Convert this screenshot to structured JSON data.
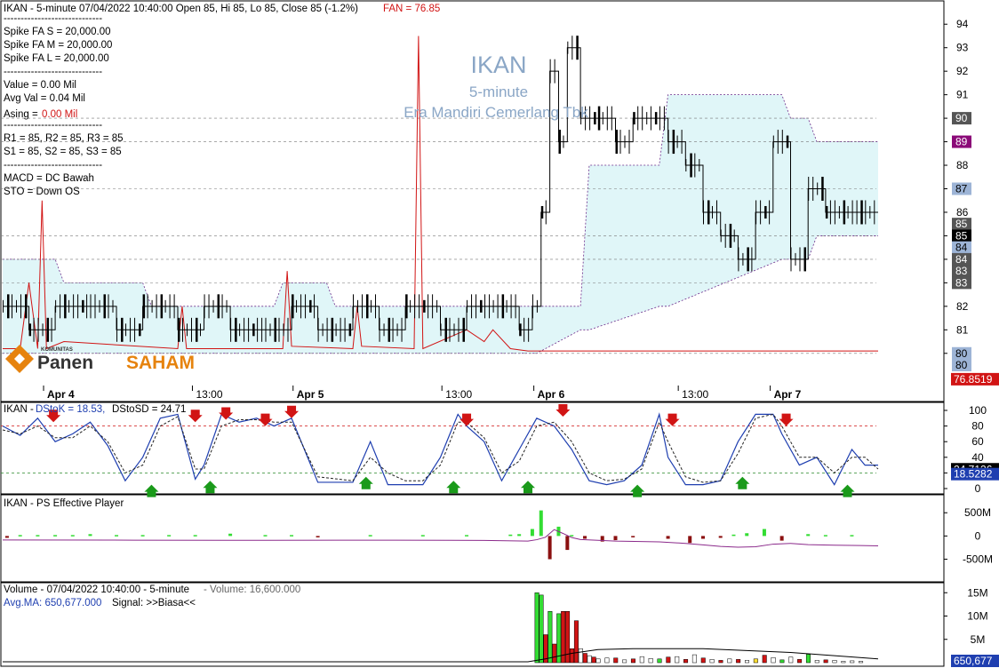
{
  "symbol": "IKAN",
  "price_panel": {
    "header": "IKAN - 5-minute 07/04/2022 10:40:00 Open 85, Hi 85, Lo 85, Close 85 (-1.2%)",
    "fan_label": "FAN = 76.85",
    "info_lines": [
      "-----------------------------",
      "Spike FA S =  20,000.00",
      "Spike FA M =  20,000.00",
      "Spike FA L =  20,000.00",
      "-----------------------------",
      "Value = 0.00 Mil",
      "Avg Val = 0.04 Mil",
      "-----------------------------",
      "R1 = 85, R2 = 85, R3 = 85",
      "S1 = 85, S2 = 85, S3 = 85",
      "-----------------------------",
      "MACD =  DC Bawah",
      "STO  =  Down OS"
    ],
    "asing_label": "Asing = ",
    "asing_value": "0.00 Mil",
    "watermark": {
      "title": "IKAN",
      "interval": "5-minute",
      "company": "Era Mandiri Cemerlang Tbk"
    },
    "logo": {
      "small": "KOMUNITAS",
      "word1": "Panen",
      "word2": "SAHAM"
    },
    "y_ticks": [
      "94",
      "93",
      "92",
      "91",
      "90",
      "89",
      "88",
      "87",
      "86",
      "85",
      "84",
      "83",
      "82",
      "81",
      "80"
    ],
    "badges": [
      {
        "label": "90",
        "bg": "#555555",
        "fg": "#ffffff",
        "value": 90
      },
      {
        "label": "89",
        "bg": "#8b0a78",
        "fg": "#ffffff",
        "value": 89
      },
      {
        "label": "87",
        "bg": "#9db4d6",
        "fg": "#000000",
        "value": 87
      },
      {
        "label": "85",
        "bg": "#555555",
        "fg": "#ffffff",
        "value": 85.5
      },
      {
        "label": "85",
        "bg": "#000000",
        "fg": "#ffffff",
        "value": 85
      },
      {
        "label": "84",
        "bg": "#9db4d6",
        "fg": "#000000",
        "value": 84.5
      },
      {
        "label": "84",
        "bg": "#555555",
        "fg": "#ffffff",
        "value": 84
      },
      {
        "label": "83",
        "bg": "#555555",
        "fg": "#ffffff",
        "value": 83.5
      },
      {
        "label": "83",
        "bg": "#555555",
        "fg": "#ffffff",
        "value": 83
      },
      {
        "label": "80",
        "bg": "#9db4d6",
        "fg": "#000000",
        "value": 80
      },
      {
        "label": "80",
        "bg": "#9db4d6",
        "fg": "#000000",
        "value": 79.5
      },
      {
        "label": "76.8519",
        "bg": "#d11414",
        "fg": "#ffffff",
        "value": 78.9
      }
    ],
    "x_labels": [
      {
        "label": "Apr 4",
        "bold": true,
        "x": 0.065
      },
      {
        "label": "13:00",
        "bold": false,
        "x": 0.235
      },
      {
        "label": "Apr 5",
        "bold": true,
        "x": 0.35
      },
      {
        "label": "13:00",
        "bold": false,
        "x": 0.52
      },
      {
        "label": "Apr 6",
        "bold": true,
        "x": 0.625
      },
      {
        "label": "13:00",
        "bold": false,
        "x": 0.79
      },
      {
        "label": "Apr 7",
        "bold": true,
        "x": 0.895
      }
    ]
  },
  "stoch_panel": {
    "header_prefix": "IKAN - ",
    "header_k": "DStoK = 18.53,",
    "header_d": " DStoSD = 24.71",
    "y_ticks": [
      "100",
      "80",
      "60",
      "40",
      "20",
      "0"
    ],
    "badges": [
      {
        "label": "24.7126",
        "bg": "#000000",
        "fg": "#ffffff",
        "value": 24.71
      },
      {
        "label": "18.5282",
        "bg": "#1f3fb0",
        "fg": "#ffffff",
        "value": 18.53
      }
    ],
    "levels": {
      "overbought": 80,
      "oversold": 20
    }
  },
  "ps_panel": {
    "header": "IKAN - PS Effective Player",
    "y_ticks": [
      "500M",
      "0",
      "-500M"
    ]
  },
  "volume_panel": {
    "header_prefix": "Volume - 07/04/2022 10:40:00 - 5-minute",
    "header_volume": "  - Volume: 16,600.000",
    "avg_label": "Avg.MA: 650,677.000",
    "signal_label": "Signal: >>Biasa<<",
    "y_ticks": [
      "15M",
      "10M",
      "5M"
    ],
    "badge": {
      "label": "650,677",
      "bg": "#1f3fb0",
      "fg": "#ffffff",
      "value": 650677
    }
  },
  "chart_data": [
    {
      "type": "bar",
      "title": "IKAN - 5-minute",
      "ylim": [
        79.5,
        94.5
      ],
      "price_x": [
        0.0,
        0.03,
        0.06,
        0.1,
        0.13,
        0.16,
        0.2,
        0.23,
        0.26,
        0.3,
        0.33,
        0.36,
        0.4,
        0.43,
        0.46,
        0.5,
        0.53,
        0.56,
        0.59,
        0.605,
        0.615,
        0.625,
        0.635,
        0.645,
        0.66,
        0.68,
        0.7,
        0.72,
        0.74,
        0.76,
        0.78,
        0.8,
        0.82,
        0.84,
        0.86,
        0.88,
        0.9,
        0.92,
        0.94,
        0.96,
        0.98,
        1.0
      ],
      "price_y": [
        82,
        81,
        82,
        82,
        81,
        82,
        81,
        82,
        81,
        81,
        82,
        81,
        82,
        81,
        82,
        81,
        82,
        82,
        81,
        82,
        86,
        92,
        89,
        93,
        90,
        90,
        89,
        90,
        90,
        89,
        88,
        86,
        85,
        84,
        86,
        89,
        84,
        87,
        86,
        86,
        86,
        86
      ],
      "band_x": [
        0.0,
        0.06,
        0.07,
        0.16,
        0.17,
        0.31,
        0.32,
        0.37,
        0.38,
        0.6,
        0.605,
        0.61,
        0.66,
        0.67,
        0.75,
        0.76,
        0.89,
        0.9,
        0.92,
        0.93,
        1.0
      ],
      "band_up": [
        84,
        84,
        83,
        83,
        82,
        82,
        83,
        83,
        82,
        82,
        82,
        82,
        82,
        88,
        88,
        91,
        91,
        90,
        90,
        89,
        89
      ],
      "band_lo": [
        80,
        80,
        80,
        80,
        80,
        80,
        80,
        80,
        80,
        80,
        80,
        80,
        81,
        81,
        82,
        82,
        84,
        84,
        84,
        85,
        85
      ],
      "fan_x": [
        0.0,
        0.02,
        0.03,
        0.04,
        0.045,
        0.05,
        0.07,
        0.2,
        0.205,
        0.21,
        0.32,
        0.325,
        0.33,
        0.4,
        0.405,
        0.41,
        0.47,
        0.475,
        0.48,
        0.53,
        0.55,
        0.56,
        0.58,
        0.6,
        1.0
      ],
      "fan_y": [
        80.2,
        80.2,
        83,
        80.2,
        86.5,
        80.2,
        80.5,
        80.2,
        82,
        80.2,
        80.2,
        83.5,
        80.3,
        80.2,
        82,
        80.3,
        80.2,
        93.5,
        80.2,
        81,
        80.5,
        81,
        80.2,
        80.1,
        80.1
      ]
    },
    {
      "type": "line",
      "title": "IKAN - DStoK / DStoSD",
      "ylim": [
        0,
        100
      ],
      "series": [
        {
          "name": "DStoK",
          "x": [
            0.0,
            0.02,
            0.04,
            0.06,
            0.08,
            0.1,
            0.12,
            0.14,
            0.16,
            0.18,
            0.2,
            0.22,
            0.23,
            0.25,
            0.27,
            0.29,
            0.31,
            0.33,
            0.36,
            0.4,
            0.42,
            0.44,
            0.46,
            0.48,
            0.5,
            0.52,
            0.53,
            0.55,
            0.57,
            0.59,
            0.61,
            0.63,
            0.65,
            0.67,
            0.69,
            0.71,
            0.73,
            0.75,
            0.76,
            0.78,
            0.8,
            0.82,
            0.84,
            0.86,
            0.88,
            0.89,
            0.91,
            0.93,
            0.95,
            0.97,
            0.985,
            1.0
          ],
          "y": [
            80,
            68,
            90,
            60,
            70,
            85,
            55,
            10,
            40,
            90,
            95,
            12,
            30,
            95,
            85,
            90,
            80,
            90,
            8,
            8,
            60,
            5,
            5,
            5,
            40,
            95,
            80,
            60,
            10,
            50,
            90,
            80,
            50,
            10,
            5,
            10,
            30,
            95,
            40,
            5,
            5,
            10,
            60,
            95,
            95,
            70,
            30,
            40,
            5,
            50,
            30,
            30
          ]
        },
        {
          "name": "DStoSD",
          "x": [
            0.0,
            0.02,
            0.04,
            0.06,
            0.08,
            0.1,
            0.12,
            0.14,
            0.16,
            0.18,
            0.2,
            0.22,
            0.23,
            0.25,
            0.27,
            0.29,
            0.31,
            0.33,
            0.36,
            0.4,
            0.42,
            0.44,
            0.46,
            0.48,
            0.5,
            0.52,
            0.53,
            0.55,
            0.57,
            0.59,
            0.61,
            0.63,
            0.65,
            0.67,
            0.69,
            0.71,
            0.73,
            0.75,
            0.76,
            0.78,
            0.8,
            0.82,
            0.84,
            0.86,
            0.88,
            0.89,
            0.91,
            0.93,
            0.95,
            0.97,
            0.985,
            1.0
          ],
          "y": [
            75,
            70,
            80,
            65,
            65,
            80,
            60,
            20,
            30,
            80,
            92,
            25,
            25,
            80,
            88,
            88,
            85,
            85,
            15,
            10,
            40,
            20,
            10,
            10,
            30,
            85,
            85,
            65,
            20,
            35,
            80,
            85,
            60,
            20,
            10,
            12,
            25,
            85,
            60,
            15,
            8,
            10,
            45,
            90,
            95,
            80,
            40,
            40,
            20,
            40,
            40,
            25
          ]
        }
      ],
      "markers": [
        {
          "kind": "sell",
          "x": 0.058,
          "y": 85
        },
        {
          "kind": "sell",
          "x": 0.22,
          "y": 85
        },
        {
          "kind": "sell",
          "x": 0.255,
          "y": 88
        },
        {
          "kind": "sell",
          "x": 0.3,
          "y": 80
        },
        {
          "kind": "sell",
          "x": 0.33,
          "y": 90
        },
        {
          "kind": "sell",
          "x": 0.53,
          "y": 80
        },
        {
          "kind": "sell",
          "x": 0.64,
          "y": 92
        },
        {
          "kind": "sell",
          "x": 0.765,
          "y": 80
        },
        {
          "kind": "sell",
          "x": 0.895,
          "y": 80
        },
        {
          "kind": "buy",
          "x": 0.17,
          "y": 5
        },
        {
          "kind": "buy",
          "x": 0.237,
          "y": 10
        },
        {
          "kind": "buy",
          "x": 0.415,
          "y": 15
        },
        {
          "kind": "buy",
          "x": 0.515,
          "y": 10
        },
        {
          "kind": "buy",
          "x": 0.6,
          "y": 10
        },
        {
          "kind": "buy",
          "x": 0.725,
          "y": 5
        },
        {
          "kind": "buy",
          "x": 0.845,
          "y": 15
        },
        {
          "kind": "buy",
          "x": 0.965,
          "y": 5
        }
      ]
    },
    {
      "type": "bar",
      "title": "IKAN - PS Effective Player",
      "ylim": [
        -700,
        600
      ],
      "bars_x": [
        0.005,
        0.02,
        0.04,
        0.06,
        0.08,
        0.1,
        0.13,
        0.16,
        0.19,
        0.22,
        0.26,
        0.3,
        0.33,
        0.36,
        0.42,
        0.48,
        0.53,
        0.58,
        0.59,
        0.605,
        0.615,
        0.625,
        0.635,
        0.645,
        0.65,
        0.665,
        0.685,
        0.7,
        0.72,
        0.76,
        0.785,
        0.8,
        0.82,
        0.835,
        0.85,
        0.87,
        0.89,
        0.92,
        0.94,
        0.97
      ],
      "bars_y": [
        -40,
        20,
        20,
        20,
        20,
        40,
        20,
        20,
        20,
        20,
        50,
        20,
        20,
        -30,
        20,
        20,
        20,
        30,
        40,
        150,
        550,
        -500,
        200,
        -300,
        20,
        -60,
        -120,
        -90,
        -30,
        -60,
        -150,
        -60,
        -40,
        30,
        60,
        150,
        -100,
        40,
        20,
        20
      ],
      "line_x": [
        0.0,
        0.15,
        0.3,
        0.45,
        0.55,
        0.6,
        0.61,
        0.62,
        0.63,
        0.64,
        0.65,
        0.66,
        0.7,
        0.75,
        0.78,
        0.8,
        0.82,
        0.84,
        0.86,
        0.88,
        0.9,
        0.92,
        0.95,
        0.98,
        1.0
      ],
      "line_y": [
        -80,
        -90,
        -100,
        -90,
        -110,
        -150,
        -60,
        100,
        600,
        350,
        80,
        -50,
        -150,
        -200,
        -300,
        -400,
        -500,
        -550,
        -520,
        -350,
        -300,
        -380,
        -420,
        -440,
        -460
      ]
    },
    {
      "type": "bar",
      "title": "Volume - 5-minute",
      "ylim": [
        0,
        16000000
      ],
      "bars_x": [
        0.61,
        0.615,
        0.62,
        0.625,
        0.63,
        0.635,
        0.64,
        0.645,
        0.65,
        0.655,
        0.66,
        0.665,
        0.67,
        0.675,
        0.68,
        0.69,
        0.7,
        0.71,
        0.72,
        0.73,
        0.74,
        0.75,
        0.76,
        0.77,
        0.78,
        0.79,
        0.8,
        0.81,
        0.82,
        0.83,
        0.84,
        0.85,
        0.86,
        0.87,
        0.88,
        0.89,
        0.9,
        0.91,
        0.92,
        0.93,
        0.94,
        0.95,
        0.96,
        0.97,
        0.98
      ],
      "bars_y": [
        15000000,
        14500000,
        6000000,
        11000000,
        4000000,
        10500000,
        11000000,
        11000000,
        3000000,
        9000000,
        3000000,
        2000000,
        1500000,
        1200000,
        800000,
        1000000,
        1000000,
        600000,
        800000,
        1300000,
        900000,
        800000,
        1200000,
        1300000,
        700000,
        1700000,
        1000000,
        700000,
        500000,
        800000,
        700000,
        500000,
        800000,
        1600000,
        1100000,
        600000,
        1200000,
        700000,
        1800000,
        500000,
        600000,
        500000,
        300000,
        400000,
        300000
      ],
      "bars_color": [
        "#33dd33",
        "#33dd33",
        "#d11414",
        "#33dd33",
        "#d11414",
        "#33dd33",
        "#d11414",
        "#d11414",
        "#d11414",
        "#d11414",
        "#ffffff",
        "#d11414",
        "#ffffff",
        "#d11414",
        "#ffffff",
        "#ffffff",
        "#d11414",
        "#ffffff",
        "#d11414",
        "#ffffff",
        "#ffffff",
        "#33dd33",
        "#d11414",
        "#ffffff",
        "#d11414",
        "#ffffff",
        "#d11414",
        "#ffffff",
        "#d11414",
        "#ffffff",
        "#d11414",
        "#ffffff",
        "#ffe033",
        "#d11414",
        "#ffffff",
        "#33dd33",
        "#ffffff",
        "#d11414",
        "#33dd33",
        "#ffffff",
        "#d11414",
        "#ffffff",
        "#ffffff",
        "#ffffff",
        "#ffffff"
      ],
      "ma_x": [
        0.0,
        0.55,
        0.6,
        0.62,
        0.65,
        0.68,
        0.72,
        0.76,
        0.8,
        0.85,
        0.9,
        0.95,
        1.0
      ],
      "ma_y": [
        200000,
        200000,
        200000,
        800000,
        2000000,
        2800000,
        3000000,
        3000000,
        3000000,
        2600000,
        2200000,
        1500000,
        800000
      ]
    }
  ]
}
